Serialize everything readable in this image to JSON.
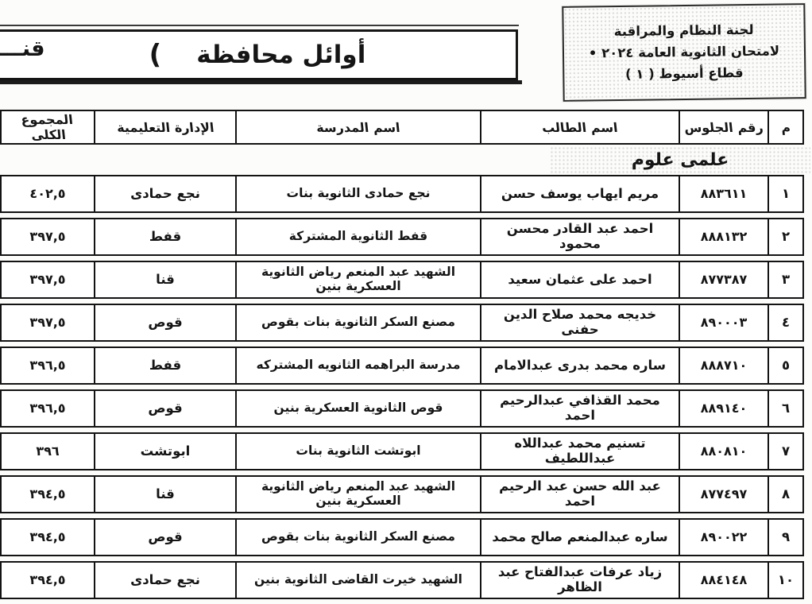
{
  "stamp": {
    "line1": "لجنة النظام والمراقبة",
    "line2": "لامتحان الثانوية العامة ٢٠٢٤ •",
    "line3": "قطاع أسيوط ( ١ )"
  },
  "title": {
    "text": "أوائل محافظة",
    "paren": "(",
    "fragment": "قنــــــــ"
  },
  "section": {
    "label": "علمى علوم"
  },
  "table": {
    "headers": {
      "index": "م",
      "seat": "رقم الجلوس",
      "student": "اسم الطالب",
      "school": "اسم المدرسة",
      "admin": "الإدارة التعليمية",
      "total": "المجموع الكلى"
    },
    "rows": [
      {
        "index": "١",
        "seat": "٨٨٣٦١١",
        "student": "مريم ايهاب يوسف حسن",
        "school": "نجع حمادى الثانوية بنات",
        "admin": "نجع حمادى",
        "total": "٤٠٢,٥"
      },
      {
        "index": "٢",
        "seat": "٨٨٨١٣٢",
        "student": "احمد عبد القادر محسن محمود",
        "school": "قفط الثانوية المشتركة",
        "admin": "قفط",
        "total": "٣٩٧,٥"
      },
      {
        "index": "٣",
        "seat": "٨٧٧٣٨٧",
        "student": "احمد على عثمان سعيد",
        "school": "الشهيد عبد المنعم رياض الثانوية العسكرية بنين",
        "admin": "قنا",
        "total": "٣٩٧,٥"
      },
      {
        "index": "٤",
        "seat": "٨٩٠٠٠٣",
        "student": "خديجه محمد صلاح الدين حفنى",
        "school": "مصنع السكر الثانوية بنات بقوص",
        "admin": "قوص",
        "total": "٣٩٧,٥"
      },
      {
        "index": "٥",
        "seat": "٨٨٨٧١٠",
        "student": "ساره محمد بدرى عبدالامام",
        "school": "مدرسة البراهمه الثانويه المشتركه",
        "admin": "قفط",
        "total": "٣٩٦,٥"
      },
      {
        "index": "٦",
        "seat": "٨٨٩١٤٠",
        "student": "محمد القذافي عبدالرحيم احمد",
        "school": "قوص الثانوية العسكرية بنين",
        "admin": "قوص",
        "total": "٣٩٦,٥"
      },
      {
        "index": "٧",
        "seat": "٨٨٠٨١٠",
        "student": "تسنيم محمد عبداللاه عبداللطيف",
        "school": "ابوتشت الثانوية بنات",
        "admin": "ابوتشت",
        "total": "٣٩٦"
      },
      {
        "index": "٨",
        "seat": "٨٧٧٤٩٧",
        "student": "عبد الله حسن عبد الرحيم احمد",
        "school": "الشهيد عبد المنعم رياض الثانوية العسكرية بنين",
        "admin": "قنا",
        "total": "٣٩٤,٥"
      },
      {
        "index": "٩",
        "seat": "٨٩٠٠٢٢",
        "student": "ساره عبدالمنعم صالح محمد",
        "school": "مصنع السكر الثانوية بنات بقوص",
        "admin": "قوص",
        "total": "٣٩٤,٥"
      },
      {
        "index": "١٠",
        "seat": "٨٨٤١٤٨",
        "student": "زياد عرفات عبدالفتاح عبد الظاهر",
        "school": "الشهيد خيرت القاضى الثانوية بنين",
        "admin": "نجع حمادى",
        "total": "٣٩٤,٥"
      }
    ]
  }
}
